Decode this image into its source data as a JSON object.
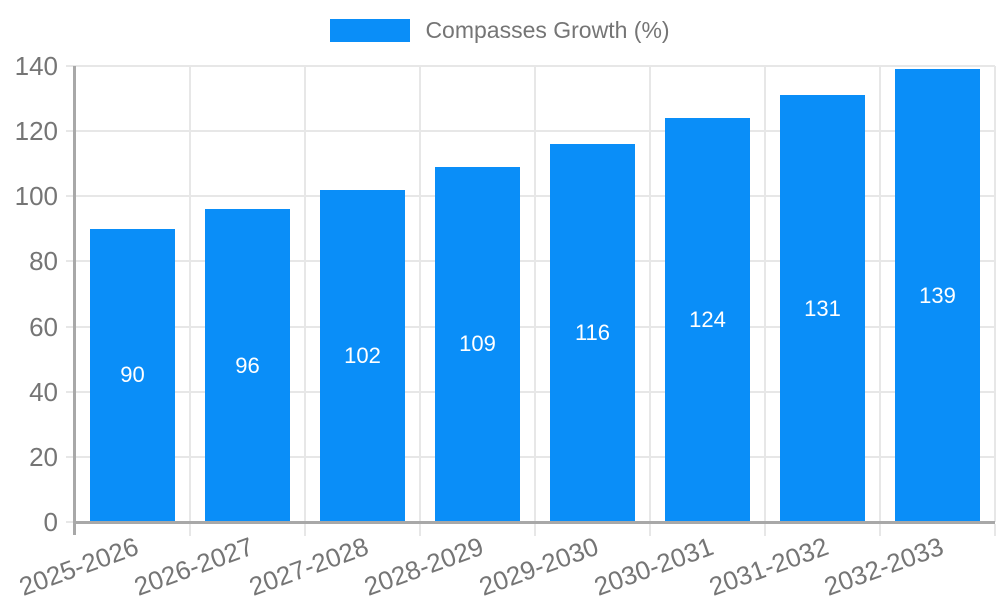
{
  "chart_data": {
    "type": "bar",
    "title": "Compasses Growth (%)",
    "legend": [
      "Compasses Growth (%)"
    ],
    "legend_position": "top-center",
    "categories": [
      "2025-2026",
      "2026-2027",
      "2027-2028",
      "2028-2029",
      "2029-2030",
      "2030-2031",
      "2031-2032",
      "2032-2033"
    ],
    "values": [
      90,
      96,
      102,
      109,
      116,
      124,
      131,
      139
    ],
    "ylim": [
      0,
      140
    ],
    "yticks": [
      0,
      20,
      40,
      60,
      80,
      100,
      120,
      140
    ],
    "grid": true,
    "show_bar_value_labels": true,
    "x_tick_rotation_deg": -20
  },
  "colors": {
    "bar": "#0a8ef8",
    "bar_value_text": "#ffffff",
    "grid": "#e7e7e7",
    "axis": "#a8a8a8",
    "tick_text": "#757575",
    "legend_text": "#757575",
    "background": "#ffffff"
  }
}
